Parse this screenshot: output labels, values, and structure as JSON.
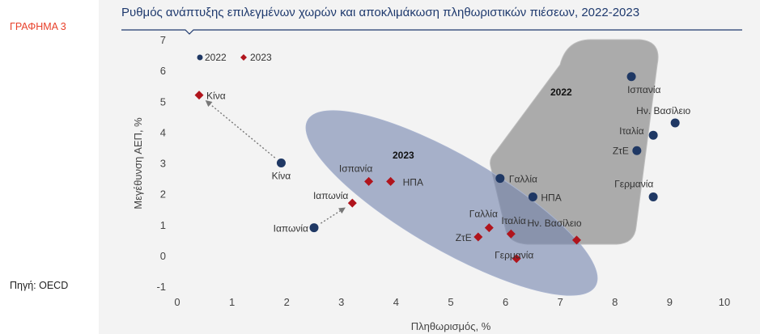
{
  "sidebar": {
    "label": "ΓΡΑΦΗΜΑ 3",
    "source": "Πηγή: OECD"
  },
  "colors": {
    "2022": "#1f3864",
    "2023": "#b0141c",
    "title": "#1f3a6e",
    "accent": "#e8402a"
  },
  "chart_data": {
    "type": "scatter",
    "title": "Ρυθμός ανάπτυξης επιλεγμένων χωρών και αποκλιμάκωση πληθωριστικών πιέσεων, 2022-2023",
    "xlabel": "Πληθωρισμός, %",
    "ylabel": "Μεγέθυνση ΑΕΠ, %",
    "xlim": [
      0,
      10
    ],
    "ylim": [
      -1,
      7
    ],
    "xticks": [
      0,
      1,
      2,
      3,
      4,
      5,
      6,
      7,
      8,
      9,
      10
    ],
    "yticks": [
      -1,
      0,
      1,
      2,
      3,
      4,
      5,
      6,
      7
    ],
    "grid": false,
    "legend_position": "top-left",
    "region_labels": [
      "2022",
      "2023"
    ],
    "series": [
      {
        "name": "2022",
        "marker": "circle",
        "points": [
          {
            "label": "Κίνα",
            "x": 1.9,
            "y": 3.0
          },
          {
            "label": "Ιαπωνία",
            "x": 2.5,
            "y": 0.9
          },
          {
            "label": "Γαλλία",
            "x": 5.9,
            "y": 2.5
          },
          {
            "label": "ΗΠΑ",
            "x": 6.5,
            "y": 1.9
          },
          {
            "label": "Ισπανία",
            "x": 8.3,
            "y": 5.8
          },
          {
            "label": "Ην. Βασίλειο",
            "x": 9.1,
            "y": 4.3
          },
          {
            "label": "Ιταλία",
            "x": 8.7,
            "y": 3.9
          },
          {
            "label": "ΖτΕ",
            "x": 8.4,
            "y": 3.4
          },
          {
            "label": "Γερμανία",
            "x": 8.7,
            "y": 1.9
          }
        ]
      },
      {
        "name": "2023",
        "marker": "diamond",
        "points": [
          {
            "label": "Κίνα",
            "x": 0.4,
            "y": 5.2
          },
          {
            "label": "Ιαπωνία",
            "x": 3.2,
            "y": 1.7
          },
          {
            "label": "Ισπανία",
            "x": 3.5,
            "y": 2.4
          },
          {
            "label": "ΗΠΑ",
            "x": 3.9,
            "y": 2.4
          },
          {
            "label": "Γαλλία",
            "x": 5.7,
            "y": 0.9
          },
          {
            "label": "ΖτΕ",
            "x": 5.5,
            "y": 0.6
          },
          {
            "label": "Ιταλία",
            "x": 6.1,
            "y": 0.7
          },
          {
            "label": "Ην. Βασίλειο",
            "x": 7.3,
            "y": 0.5
          },
          {
            "label": "Γερμανία",
            "x": 6.2,
            "y": -0.1
          }
        ]
      }
    ]
  }
}
